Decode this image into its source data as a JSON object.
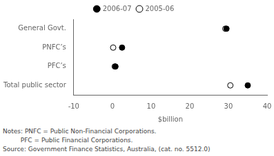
{
  "chart_data": {
    "type": "dot",
    "orientation": "horizontal",
    "categories": [
      "General Govt.",
      "PNFC’s",
      "PFC’s",
      "Total public sector"
    ],
    "series": [
      {
        "name": "2006-07",
        "color": "#000000",
        "marker": "circle",
        "values": [
          29.5,
          2.5,
          0.8,
          35.0
        ]
      },
      {
        "name": "2005-06",
        "color": "#000000",
        "marker": "open_circle",
        "values": [
          29.2,
          0.2,
          0.6,
          30.5
        ]
      }
    ],
    "xlabel": "$billion",
    "xlim": [
      -10,
      40
    ],
    "xticks": [
      -10,
      0,
      10,
      20,
      30,
      40
    ],
    "grid": false,
    "legend": "top",
    "annotations": [
      "Notes: PNFC = Public Non-Financial Corporations.",
      "         PFC = Public Financial Corporations.",
      "Source: Government Finance Statistics, Australia, (cat. no. 5512.0)"
    ]
  }
}
